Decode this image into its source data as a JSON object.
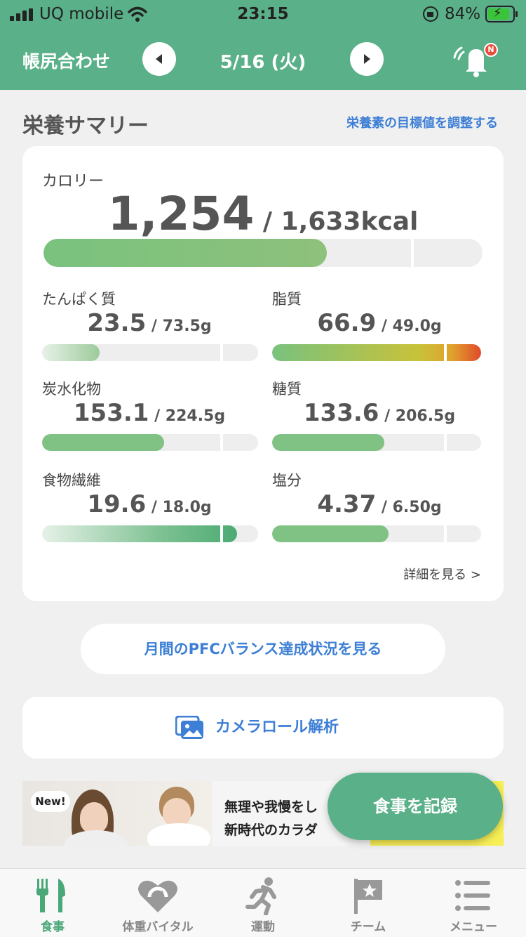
{
  "status_bar": {
    "carrier": "UQ mobile",
    "time": "23:15",
    "battery": "84%"
  },
  "header": {
    "title": "帳尻合わせ",
    "date": "5/16 (火)",
    "notification_badge": "N"
  },
  "summary": {
    "section_title": "栄養サマリー",
    "adjust_link": "栄養素の目標値を調整する",
    "calorie": {
      "label": "カロリー",
      "value": "1,254",
      "target": " / 1,633kcal",
      "progress": 0.768
    },
    "nutrients": [
      {
        "label": "たんぱく質",
        "value": "23.5",
        "target": " / 73.5g",
        "progress": 0.32
      },
      {
        "label": "脂質",
        "value": "66.9",
        "target": " / 49.0g",
        "progress": 1.365
      },
      {
        "label": "炭水化物",
        "value": "153.1",
        "target": " / 224.5g",
        "progress": 0.68
      },
      {
        "label": "糖質",
        "value": "133.6",
        "target": " / 206.5g",
        "progress": 0.647
      },
      {
        "label": "食物繊維",
        "value": "19.6",
        "target": " / 18.0g",
        "progress": 1.089
      },
      {
        "label": "塩分",
        "value": "4.37",
        "target": " / 6.50g",
        "progress": 0.672
      }
    ],
    "details_link": "詳細を見る >"
  },
  "pfc_button": "月間のPFCバランス達成状況を見る",
  "camera_roll": "カメラロール解析",
  "banner": {
    "badge": "New!",
    "line1": "無理や我慢をし",
    "line2": "新時代のカラダ"
  },
  "record_button": "食事を記録",
  "tabs": [
    {
      "label": "食事",
      "icon": "fork-knife-icon",
      "active": true
    },
    {
      "label": "体重バイタル",
      "icon": "heart-scale-icon",
      "active": false
    },
    {
      "label": "運動",
      "icon": "running-icon",
      "active": false
    },
    {
      "label": "チーム",
      "icon": "flag-icon",
      "active": false
    },
    {
      "label": "メニュー",
      "icon": "menu-icon",
      "active": false
    }
  ],
  "colors": {
    "brand": "#5ab088",
    "link": "#3d7fd6",
    "over_limit": "#e74c3c"
  }
}
